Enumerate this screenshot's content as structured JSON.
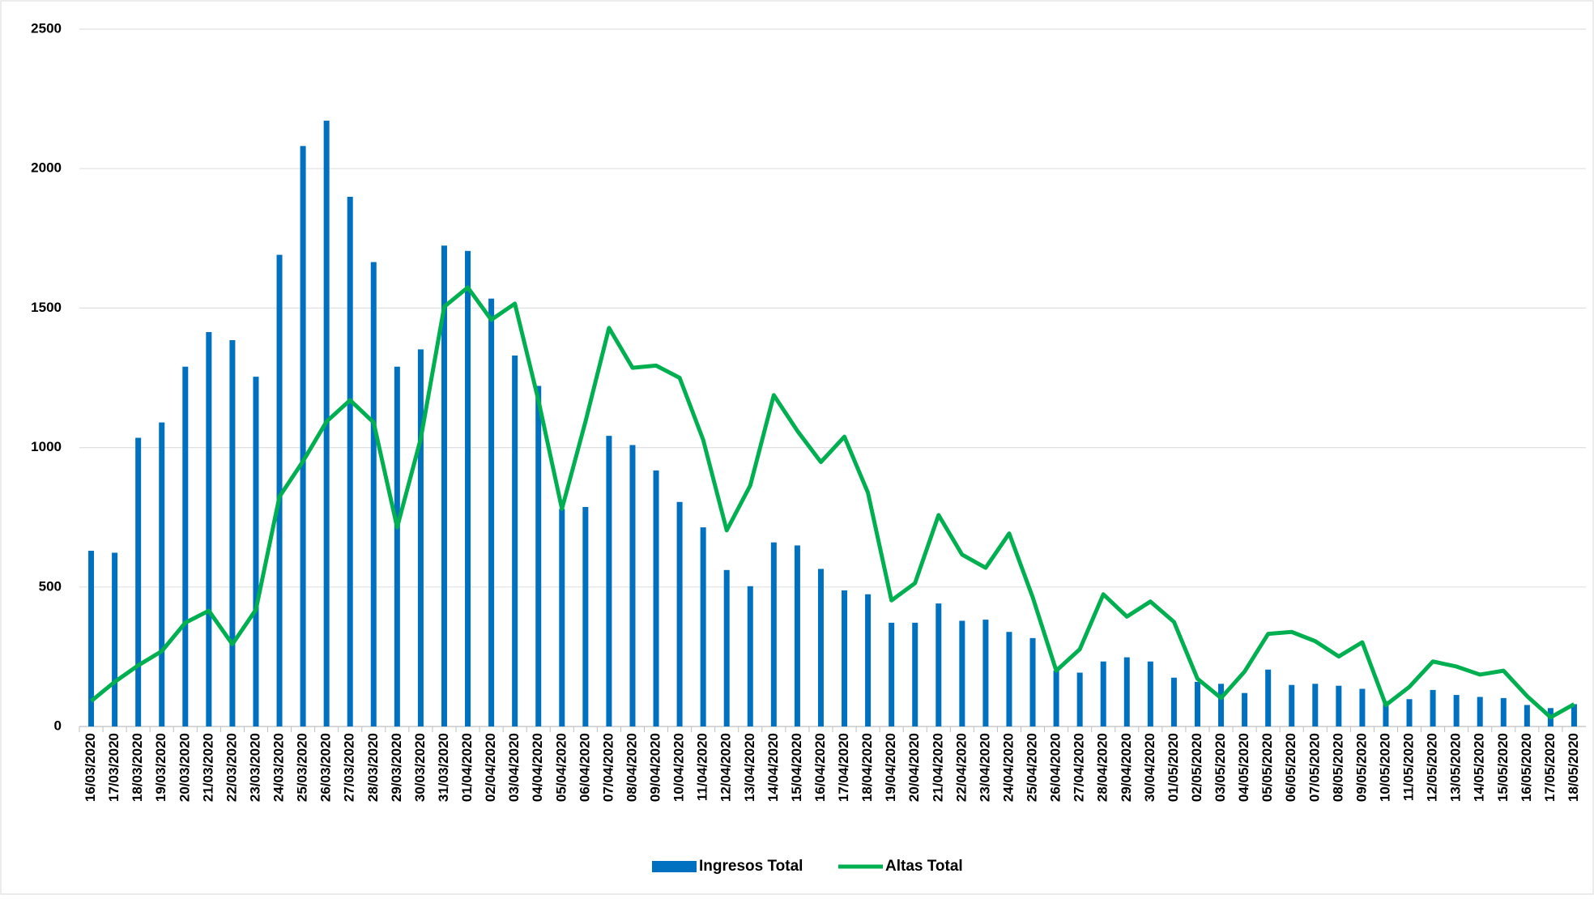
{
  "chart_data": {
    "type": "bar-line",
    "categories": [
      "16/03/2020",
      "17/03/2020",
      "18/03/2020",
      "19/03/2020",
      "20/03/2020",
      "21/03/2020",
      "22/03/2020",
      "23/03/2020",
      "24/03/2020",
      "25/03/2020",
      "26/03/2020",
      "27/03/2020",
      "28/03/2020",
      "29/03/2020",
      "30/03/2020",
      "31/03/2020",
      "01/04/2020",
      "02/04/2020",
      "03/04/2020",
      "04/04/2020",
      "05/04/2020",
      "06/04/2020",
      "07/04/2020",
      "08/04/2020",
      "09/04/2020",
      "10/04/2020",
      "11/04/2020",
      "12/04/2020",
      "13/04/2020",
      "14/04/2020",
      "15/04/2020",
      "16/04/2020",
      "17/04/2020",
      "18/04/2020",
      "19/04/2020",
      "20/04/2020",
      "21/04/2020",
      "22/04/2020",
      "23/04/2020",
      "24/04/2020",
      "25/04/2020",
      "26/04/2020",
      "27/04/2020",
      "28/04/2020",
      "29/04/2020",
      "30/04/2020",
      "01/05/2020",
      "02/05/2020",
      "03/05/2020",
      "04/05/2020",
      "05/05/2020",
      "06/05/2020",
      "07/05/2020",
      "08/05/2020",
      "09/05/2020",
      "10/05/2020",
      "11/05/2020",
      "12/05/2020",
      "13/05/2020",
      "14/05/2020",
      "15/05/2020",
      "16/05/2020",
      "17/05/2020",
      "18/05/2020"
    ],
    "series": [
      {
        "name": "Ingresos Total",
        "type": "bar",
        "color": "#0070c0",
        "values": [
          630,
          623,
          1035,
          1090,
          1290,
          1414,
          1385,
          1254,
          1691,
          2081,
          2172,
          1899,
          1665,
          1290,
          1352,
          1724,
          1705,
          1534,
          1330,
          1221,
          780,
          787,
          1042,
          1009,
          918,
          805,
          714,
          561,
          503,
          660,
          649,
          565,
          488,
          474,
          372,
          372,
          441,
          379,
          383,
          339,
          317,
          200,
          193,
          233,
          248,
          233,
          175,
          160,
          153,
          120,
          204,
          149,
          153,
          146,
          135,
          91,
          98,
          131,
          113,
          106,
          102,
          77,
          66,
          80
        ]
      },
      {
        "name": "Altas Total",
        "type": "line",
        "color": "#00b050",
        "values": [
          91,
          160,
          219,
          270,
          372,
          415,
          295,
          419,
          824,
          951,
          1093,
          1170,
          1090,
          714,
          1031,
          1505,
          1574,
          1458,
          1516,
          1170,
          780,
          1093,
          1429,
          1286,
          1294,
          1250,
          1028,
          703,
          864,
          1188,
          1060,
          948,
          1039,
          838,
          452,
          514,
          758,
          616,
          569,
          692,
          463,
          200,
          277,
          474,
          394,
          448,
          375,
          171,
          102,
          197,
          332,
          339,
          306,
          251,
          302,
          77,
          142,
          233,
          215,
          186,
          200,
          109,
          33,
          80
        ]
      }
    ],
    "ylim": [
      0,
      2500
    ],
    "yticks": [
      0,
      500,
      1000,
      1500,
      2000,
      2500
    ],
    "grid": true,
    "legend": "bottom"
  }
}
